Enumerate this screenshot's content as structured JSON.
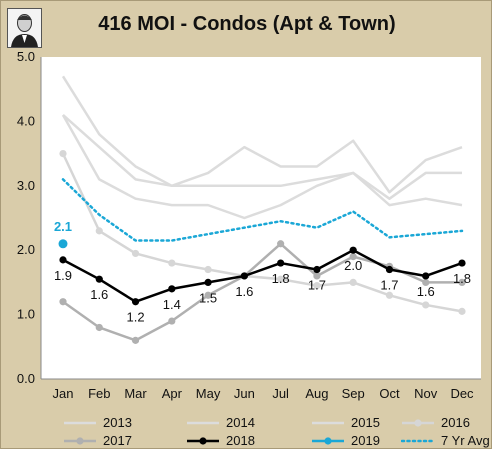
{
  "title": "416 MOI - Condos  (Apt & Town)",
  "chart_data": {
    "type": "line",
    "title": "416 MOI - Condos  (Apt & Town)",
    "categories": [
      "Jan",
      "Feb",
      "Mar",
      "Apr",
      "May",
      "Jun",
      "Jul",
      "Aug",
      "Sep",
      "Oct",
      "Nov",
      "Dec"
    ],
    "ylim": [
      0.0,
      5.0
    ],
    "yticks": [
      "0.0",
      "1.0",
      "2.0",
      "3.0",
      "4.0",
      "5.0"
    ],
    "grid": false,
    "legend_position": "bottom",
    "series": [
      {
        "name": "2013",
        "color": "#dcdcdc",
        "style": "solid",
        "marker": false,
        "width": 2.5,
        "values": [
          4.7,
          3.8,
          3.3,
          3.0,
          3.2,
          3.6,
          3.3,
          3.3,
          3.7,
          2.9,
          3.4,
          3.6
        ]
      },
      {
        "name": "2014",
        "color": "#dcdcdc",
        "style": "solid",
        "marker": false,
        "width": 2.5,
        "values": [
          4.1,
          3.1,
          2.8,
          2.7,
          2.7,
          2.5,
          2.7,
          3.0,
          3.2,
          2.7,
          2.8,
          2.7
        ]
      },
      {
        "name": "2015",
        "color": "#dcdcdc",
        "style": "solid",
        "marker": false,
        "width": 2.5,
        "values": [
          4.1,
          3.6,
          3.1,
          3.0,
          3.0,
          3.0,
          3.0,
          3.1,
          3.2,
          2.8,
          3.2,
          3.2
        ]
      },
      {
        "name": "2016",
        "color": "#d6d6d6",
        "style": "solid",
        "marker": true,
        "width": 2.5,
        "values": [
          3.5,
          2.3,
          1.95,
          1.8,
          1.7,
          1.6,
          1.55,
          1.45,
          1.5,
          1.3,
          1.15,
          1.05
        ]
      },
      {
        "name": "2017",
        "color": "#b0b0b0",
        "style": "solid",
        "marker": true,
        "width": 2.5,
        "values": [
          1.2,
          0.8,
          0.6,
          0.9,
          1.3,
          1.6,
          2.1,
          1.6,
          1.9,
          1.75,
          1.5,
          1.5
        ]
      },
      {
        "name": "2018",
        "color": "#000000",
        "style": "solid",
        "marker": true,
        "width": 2.5,
        "values": [
          1.85,
          1.55,
          1.2,
          1.4,
          1.5,
          1.6,
          1.8,
          1.7,
          2.0,
          1.7,
          1.6,
          1.8
        ],
        "labels": [
          "1.9",
          "1.6",
          "1.2",
          "1.4",
          "1.5",
          "1.6",
          "1.8",
          "1.7",
          "2.0",
          "1.7",
          "1.6",
          "1.8"
        ]
      },
      {
        "name": "2019",
        "color": "#1aa7d6",
        "style": "solid",
        "marker": true,
        "width": 2.5,
        "values": [
          2.1,
          null,
          null,
          null,
          null,
          null,
          null,
          null,
          null,
          null,
          null,
          null
        ],
        "labels": [
          "2.1"
        ]
      },
      {
        "name": "7 Yr Avg",
        "color": "#1aa7d6",
        "style": "dotted",
        "marker": false,
        "width": 2.5,
        "values": [
          3.1,
          2.55,
          2.15,
          2.15,
          2.25,
          2.35,
          2.45,
          2.35,
          2.6,
          2.2,
          2.25,
          2.3
        ]
      }
    ]
  },
  "legend": {
    "items": [
      "2013",
      "2014",
      "2015",
      "2016",
      "2017",
      "2018",
      "2019",
      "7 Yr Avg"
    ]
  }
}
